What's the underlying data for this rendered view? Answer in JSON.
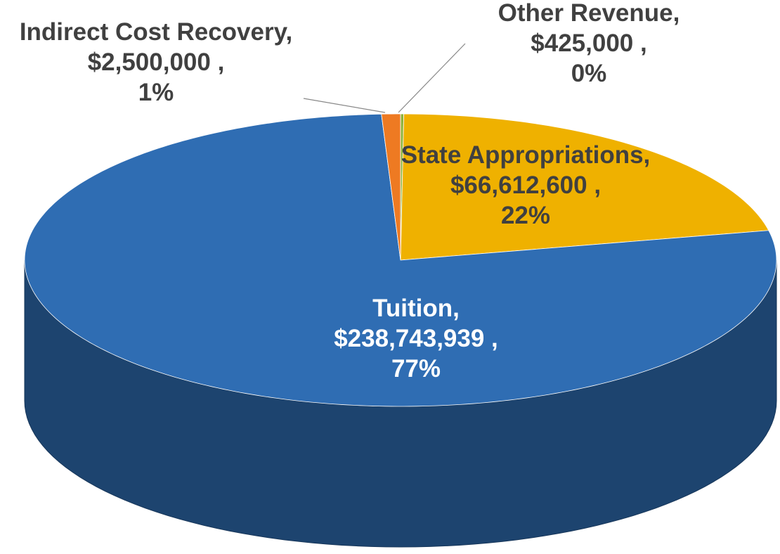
{
  "chart_data": {
    "type": "pie3d",
    "categories": [
      "Other Revenue,",
      "State Appropriations,",
      "Tuition,",
      "Indirect Cost Recovery,"
    ],
    "values": [
      425000,
      66612600,
      238743939,
      2500000
    ],
    "value_labels": [
      "$425,000 ,",
      "$66,612,600 ,",
      "$238,743,939 ,",
      "$2,500,000 ,"
    ],
    "percent_labels": [
      "0%",
      "22%",
      "77%",
      "1%"
    ],
    "colors": [
      "#8db33a",
      "#efb100",
      "#2f6db3",
      "#ee7a22"
    ]
  }
}
